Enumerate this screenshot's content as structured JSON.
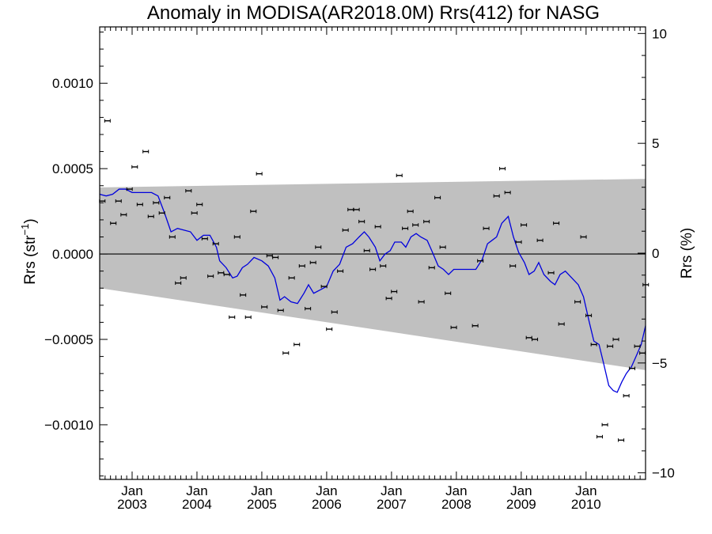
{
  "chart_data": {
    "type": "scatter",
    "title": "Anomaly in MODISA(AR2018.0M) Rrs(412) for NASG",
    "ylabel_left_main": "Rrs (str",
    "ylabel_left_sup": "−1",
    "ylabel_left_close": ")",
    "ylabel_right": "Rrs (%)",
    "x_range": [
      2002.5,
      2010.917
    ],
    "ylim_left": [
      -0.00132,
      0.00133
    ],
    "ylim_right": [
      -10.3,
      10.3
    ],
    "left_ticks": [
      {
        "v": 0.001,
        "label": "0.0010"
      },
      {
        "v": 0.0005,
        "label": "0.0005"
      },
      {
        "v": 0.0,
        "label": "0.0000"
      },
      {
        "v": -0.0005,
        "label": "−0.0005"
      },
      {
        "v": -0.001,
        "label": "−0.0010"
      }
    ],
    "right_ticks": [
      {
        "v": 10,
        "label": "10"
      },
      {
        "v": 5,
        "label": "5"
      },
      {
        "v": 0,
        "label": "0"
      },
      {
        "v": -5,
        "label": "−5"
      },
      {
        "v": -10,
        "label": "−10"
      }
    ],
    "x_ticks": [
      {
        "v": 2003.0,
        "month": "Jan",
        "year": "2003"
      },
      {
        "v": 2004.0,
        "month": "Jan",
        "year": "2004"
      },
      {
        "v": 2005.0,
        "month": "Jan",
        "year": "2005"
      },
      {
        "v": 2006.0,
        "month": "Jan",
        "year": "2006"
      },
      {
        "v": 2007.0,
        "month": "Jan",
        "year": "2007"
      },
      {
        "v": 2008.0,
        "month": "Jan",
        "year": "2008"
      },
      {
        "v": 2009.0,
        "month": "Jan",
        "year": "2009"
      },
      {
        "v": 2010.0,
        "month": "Jan",
        "year": "2010"
      }
    ],
    "band": {
      "upper": [
        [
          2002.5,
          0.00039
        ],
        [
          2010.917,
          0.00044
        ]
      ],
      "lower": [
        [
          2002.5,
          -0.0002
        ],
        [
          2010.917,
          -0.00068
        ]
      ],
      "color": "#c0c0c0"
    },
    "zero_line": 0,
    "points": [
      [
        2002.54,
        0.00031
      ],
      [
        2002.62,
        0.00078
      ],
      [
        2002.71,
        0.00018
      ],
      [
        2002.79,
        0.00031
      ],
      [
        2002.87,
        0.00023
      ],
      [
        2002.96,
        0.00038
      ],
      [
        2003.04,
        0.00051
      ],
      [
        2003.12,
        0.00029
      ],
      [
        2003.21,
        0.0006
      ],
      [
        2003.29,
        0.00022
      ],
      [
        2003.37,
        0.0003
      ],
      [
        2003.46,
        0.00024
      ],
      [
        2003.54,
        0.00033
      ],
      [
        2003.62,
        0.0001
      ],
      [
        2003.71,
        -0.00017
      ],
      [
        2003.79,
        -0.00014
      ],
      [
        2003.87,
        0.00037
      ],
      [
        2003.96,
        0.00024
      ],
      [
        2004.04,
        0.00029
      ],
      [
        2004.12,
        9e-05
      ],
      [
        2004.21,
        -0.00013
      ],
      [
        2004.29,
        6e-05
      ],
      [
        2004.37,
        -0.00011
      ],
      [
        2004.46,
        -0.00012
      ],
      [
        2004.54,
        -0.00037
      ],
      [
        2004.62,
        0.0001
      ],
      [
        2004.71,
        -0.00024
      ],
      [
        2004.79,
        -0.00037
      ],
      [
        2004.87,
        0.00025
      ],
      [
        2004.96,
        0.00047
      ],
      [
        2005.04,
        -0.00031
      ],
      [
        2005.12,
        -1e-05
      ],
      [
        2005.21,
        -2e-05
      ],
      [
        2005.29,
        -0.00033
      ],
      [
        2005.37,
        -0.00058
      ],
      [
        2005.46,
        -0.00014
      ],
      [
        2005.54,
        -0.00053
      ],
      [
        2005.62,
        -7e-05
      ],
      [
        2005.71,
        -0.00032
      ],
      [
        2005.79,
        -5e-05
      ],
      [
        2005.87,
        4e-05
      ],
      [
        2005.96,
        -0.00019
      ],
      [
        2006.04,
        -0.00044
      ],
      [
        2006.12,
        -0.00034
      ],
      [
        2006.21,
        -0.0001
      ],
      [
        2006.29,
        0.00014
      ],
      [
        2006.37,
        0.00026
      ],
      [
        2006.46,
        0.00026
      ],
      [
        2006.54,
        0.00019
      ],
      [
        2006.62,
        2e-05
      ],
      [
        2006.71,
        -9e-05
      ],
      [
        2006.79,
        0.00016
      ],
      [
        2006.87,
        -7e-05
      ],
      [
        2006.96,
        -0.00026
      ],
      [
        2007.04,
        -0.00022
      ],
      [
        2007.12,
        0.00046
      ],
      [
        2007.21,
        0.00015
      ],
      [
        2007.29,
        0.00025
      ],
      [
        2007.37,
        0.00017
      ],
      [
        2007.46,
        -0.00028
      ],
      [
        2007.54,
        0.00019
      ],
      [
        2007.62,
        -8e-05
      ],
      [
        2007.71,
        0.00033
      ],
      [
        2007.79,
        4e-05
      ],
      [
        2007.87,
        -0.00023
      ],
      [
        2007.96,
        -0.00043
      ],
      [
        2008.29,
        -0.00042
      ],
      [
        2008.37,
        -4e-05
      ],
      [
        2008.46,
        0.00015
      ],
      [
        2008.62,
        0.00034
      ],
      [
        2008.71,
        0.0005
      ],
      [
        2008.79,
        0.00036
      ],
      [
        2008.87,
        -7e-05
      ],
      [
        2008.96,
        7e-05
      ],
      [
        2009.04,
        0.00017
      ],
      [
        2009.12,
        -0.00049
      ],
      [
        2009.21,
        -0.0005
      ],
      [
        2009.29,
        8e-05
      ],
      [
        2009.46,
        -0.00011
      ],
      [
        2009.54,
        0.00018
      ],
      [
        2009.62,
        -0.00041
      ],
      [
        2009.87,
        -0.00028
      ],
      [
        2009.96,
        0.0001
      ],
      [
        2010.04,
        -0.00036
      ],
      [
        2010.12,
        -0.00053
      ],
      [
        2010.21,
        -0.00107
      ],
      [
        2010.29,
        -0.001
      ],
      [
        2010.37,
        -0.00054
      ],
      [
        2010.46,
        -0.0005
      ],
      [
        2010.54,
        -0.00109
      ],
      [
        2010.62,
        -0.00083
      ],
      [
        2010.71,
        -0.00067
      ],
      [
        2010.79,
        -0.00054
      ],
      [
        2010.87,
        -0.00058
      ],
      [
        2010.92,
        -0.00018
      ]
    ],
    "smooth_line": {
      "color": "#0000dd",
      "points": [
        [
          2002.5,
          0.00035
        ],
        [
          2002.6,
          0.00034
        ],
        [
          2002.7,
          0.00035
        ],
        [
          2002.8,
          0.00038
        ],
        [
          2002.9,
          0.00038
        ],
        [
          2003.0,
          0.00036
        ],
        [
          2003.1,
          0.00036
        ],
        [
          2003.2,
          0.00036
        ],
        [
          2003.3,
          0.00036
        ],
        [
          2003.4,
          0.00034
        ],
        [
          2003.5,
          0.00024
        ],
        [
          2003.6,
          0.00013
        ],
        [
          2003.7,
          0.00015
        ],
        [
          2003.8,
          0.00014
        ],
        [
          2003.9,
          0.00013
        ],
        [
          2004.0,
          8e-05
        ],
        [
          2004.1,
          0.00011
        ],
        [
          2004.2,
          0.00011
        ],
        [
          2004.3,
          4e-05
        ],
        [
          2004.35,
          -4e-05
        ],
        [
          2004.45,
          -8e-05
        ],
        [
          2004.55,
          -0.00014
        ],
        [
          2004.62,
          -0.00013
        ],
        [
          2004.7,
          -8e-05
        ],
        [
          2004.78,
          -6e-05
        ],
        [
          2004.88,
          -2e-05
        ],
        [
          2005.0,
          -4e-05
        ],
        [
          2005.1,
          -7e-05
        ],
        [
          2005.2,
          -0.00014
        ],
        [
          2005.28,
          -0.00027
        ],
        [
          2005.35,
          -0.00025
        ],
        [
          2005.45,
          -0.00028
        ],
        [
          2005.55,
          -0.00029
        ],
        [
          2005.65,
          -0.00023
        ],
        [
          2005.72,
          -0.00018
        ],
        [
          2005.8,
          -0.00023
        ],
        [
          2005.9,
          -0.00021
        ],
        [
          2006.0,
          -0.00019
        ],
        [
          2006.1,
          -0.0001
        ],
        [
          2006.2,
          -6e-05
        ],
        [
          2006.3,
          4e-05
        ],
        [
          2006.4,
          6e-05
        ],
        [
          2006.5,
          0.0001
        ],
        [
          2006.58,
          0.00013
        ],
        [
          2006.65,
          0.0001
        ],
        [
          2006.75,
          4e-05
        ],
        [
          2006.82,
          -4e-05
        ],
        [
          2006.9,
          0.0
        ],
        [
          2006.98,
          2e-05
        ],
        [
          2007.05,
          7e-05
        ],
        [
          2007.15,
          7e-05
        ],
        [
          2007.22,
          4e-05
        ],
        [
          2007.3,
          0.0001
        ],
        [
          2007.38,
          0.00012
        ],
        [
          2007.45,
          0.0001
        ],
        [
          2007.55,
          8e-05
        ],
        [
          2007.62,
          2e-05
        ],
        [
          2007.72,
          -7e-05
        ],
        [
          2007.8,
          -9e-05
        ],
        [
          2007.88,
          -0.00012
        ],
        [
          2007.96,
          -9e-05
        ],
        [
          2008.1,
          -9e-05
        ],
        [
          2008.3,
          -9e-05
        ],
        [
          2008.4,
          -3e-05
        ],
        [
          2008.48,
          6e-05
        ],
        [
          2008.55,
          8e-05
        ],
        [
          2008.62,
          0.0001
        ],
        [
          2008.7,
          0.00018
        ],
        [
          2008.8,
          0.00022
        ],
        [
          2008.88,
          0.0001
        ],
        [
          2008.96,
          1e-05
        ],
        [
          2009.05,
          -5e-05
        ],
        [
          2009.12,
          -0.00012
        ],
        [
          2009.2,
          -0.0001
        ],
        [
          2009.27,
          -5e-05
        ],
        [
          2009.35,
          -0.00012
        ],
        [
          2009.45,
          -0.00016
        ],
        [
          2009.52,
          -0.00018
        ],
        [
          2009.6,
          -0.00012
        ],
        [
          2009.68,
          -0.0001
        ],
        [
          2009.78,
          -0.00014
        ],
        [
          2009.88,
          -0.00018
        ],
        [
          2009.96,
          -0.00025
        ],
        [
          2010.05,
          -0.0004
        ],
        [
          2010.12,
          -0.00051
        ],
        [
          2010.2,
          -0.00053
        ],
        [
          2010.27,
          -0.00064
        ],
        [
          2010.35,
          -0.00077
        ],
        [
          2010.42,
          -0.0008
        ],
        [
          2010.48,
          -0.00081
        ],
        [
          2010.55,
          -0.00075
        ],
        [
          2010.62,
          -0.0007
        ],
        [
          2010.7,
          -0.00066
        ],
        [
          2010.77,
          -0.0006
        ],
        [
          2010.85,
          -0.00053
        ],
        [
          2010.917,
          -0.00042
        ]
      ]
    }
  }
}
